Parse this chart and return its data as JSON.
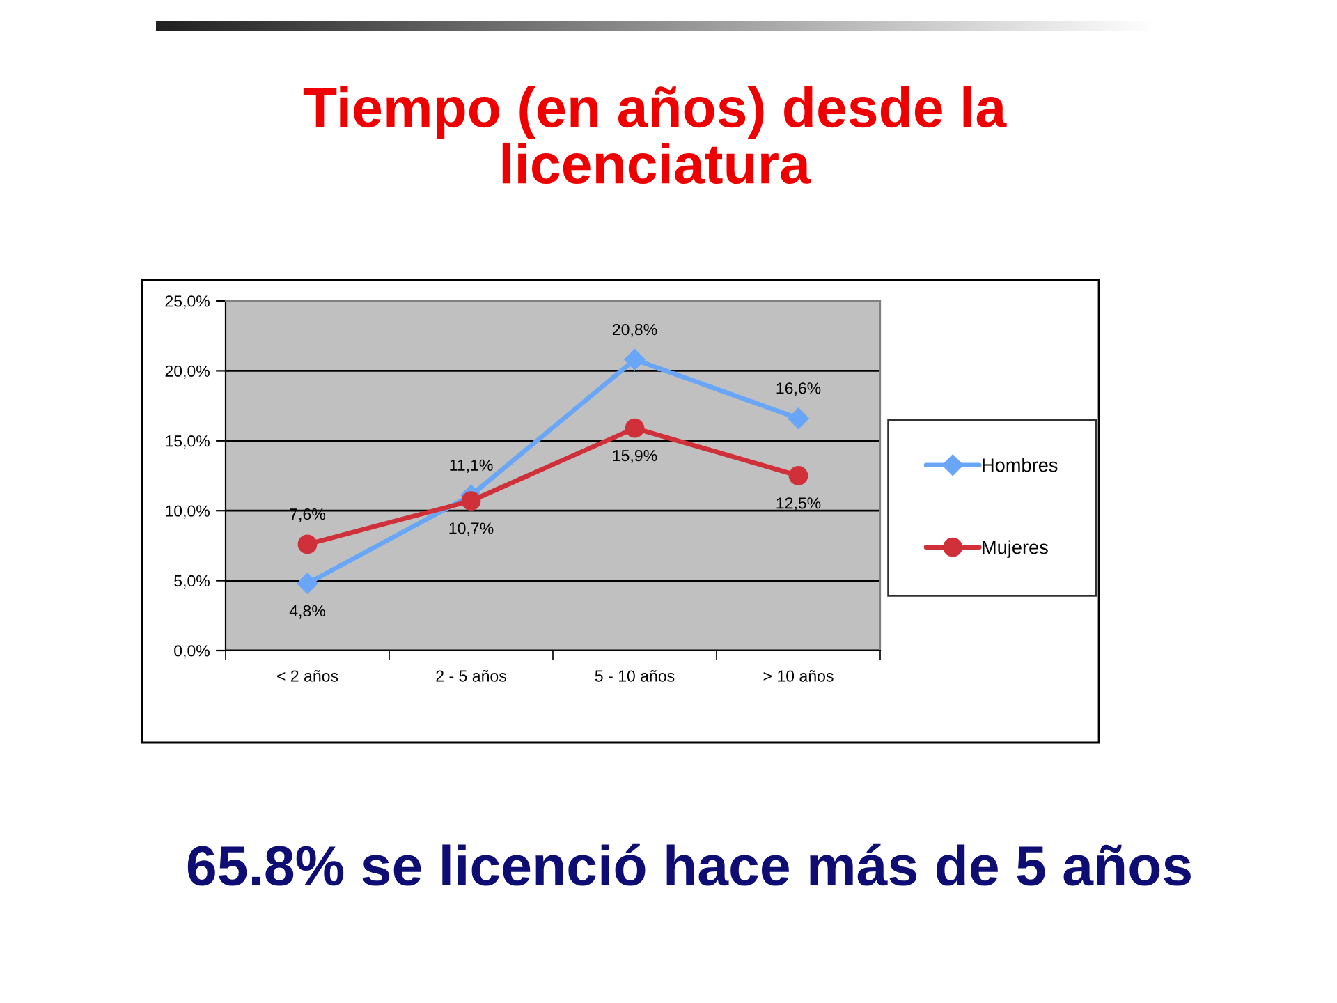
{
  "chart_data": {
    "type": "line",
    "title": "Tiempo (en años) desde la\nlicenciatura",
    "categories": [
      "< 2 años",
      "2 - 5 años",
      "5 - 10 años",
      "> 10 años"
    ],
    "series": [
      {
        "name": "Hombres",
        "color": "#6aa6f8",
        "marker": "diamond",
        "values": [
          4.8,
          11.1,
          20.8,
          16.6
        ],
        "value_labels": [
          "4,8%",
          "11,1%",
          "20,8%",
          "16,6%"
        ]
      },
      {
        "name": "Mujeres",
        "color": "#d0303a",
        "marker": "circle",
        "values": [
          7.6,
          10.7,
          15.9,
          12.5
        ],
        "value_labels": [
          "7,6%",
          "10,7%",
          "15,9%",
          "12,5%"
        ]
      }
    ],
    "ylim": [
      0,
      25
    ],
    "yticks": [
      {
        "value": 0,
        "label": "0,0%"
      },
      {
        "value": 5,
        "label": "5,0%"
      },
      {
        "value": 10,
        "label": "10,0%"
      },
      {
        "value": 15,
        "label": "15,0%"
      },
      {
        "value": 20,
        "label": "20,0%"
      },
      {
        "value": 25,
        "label": "25,0%"
      }
    ],
    "grid": "y",
    "legend": "right",
    "line_style": "solid",
    "annotations": [
      "65.8% se licenció hace más de 5 años"
    ]
  }
}
